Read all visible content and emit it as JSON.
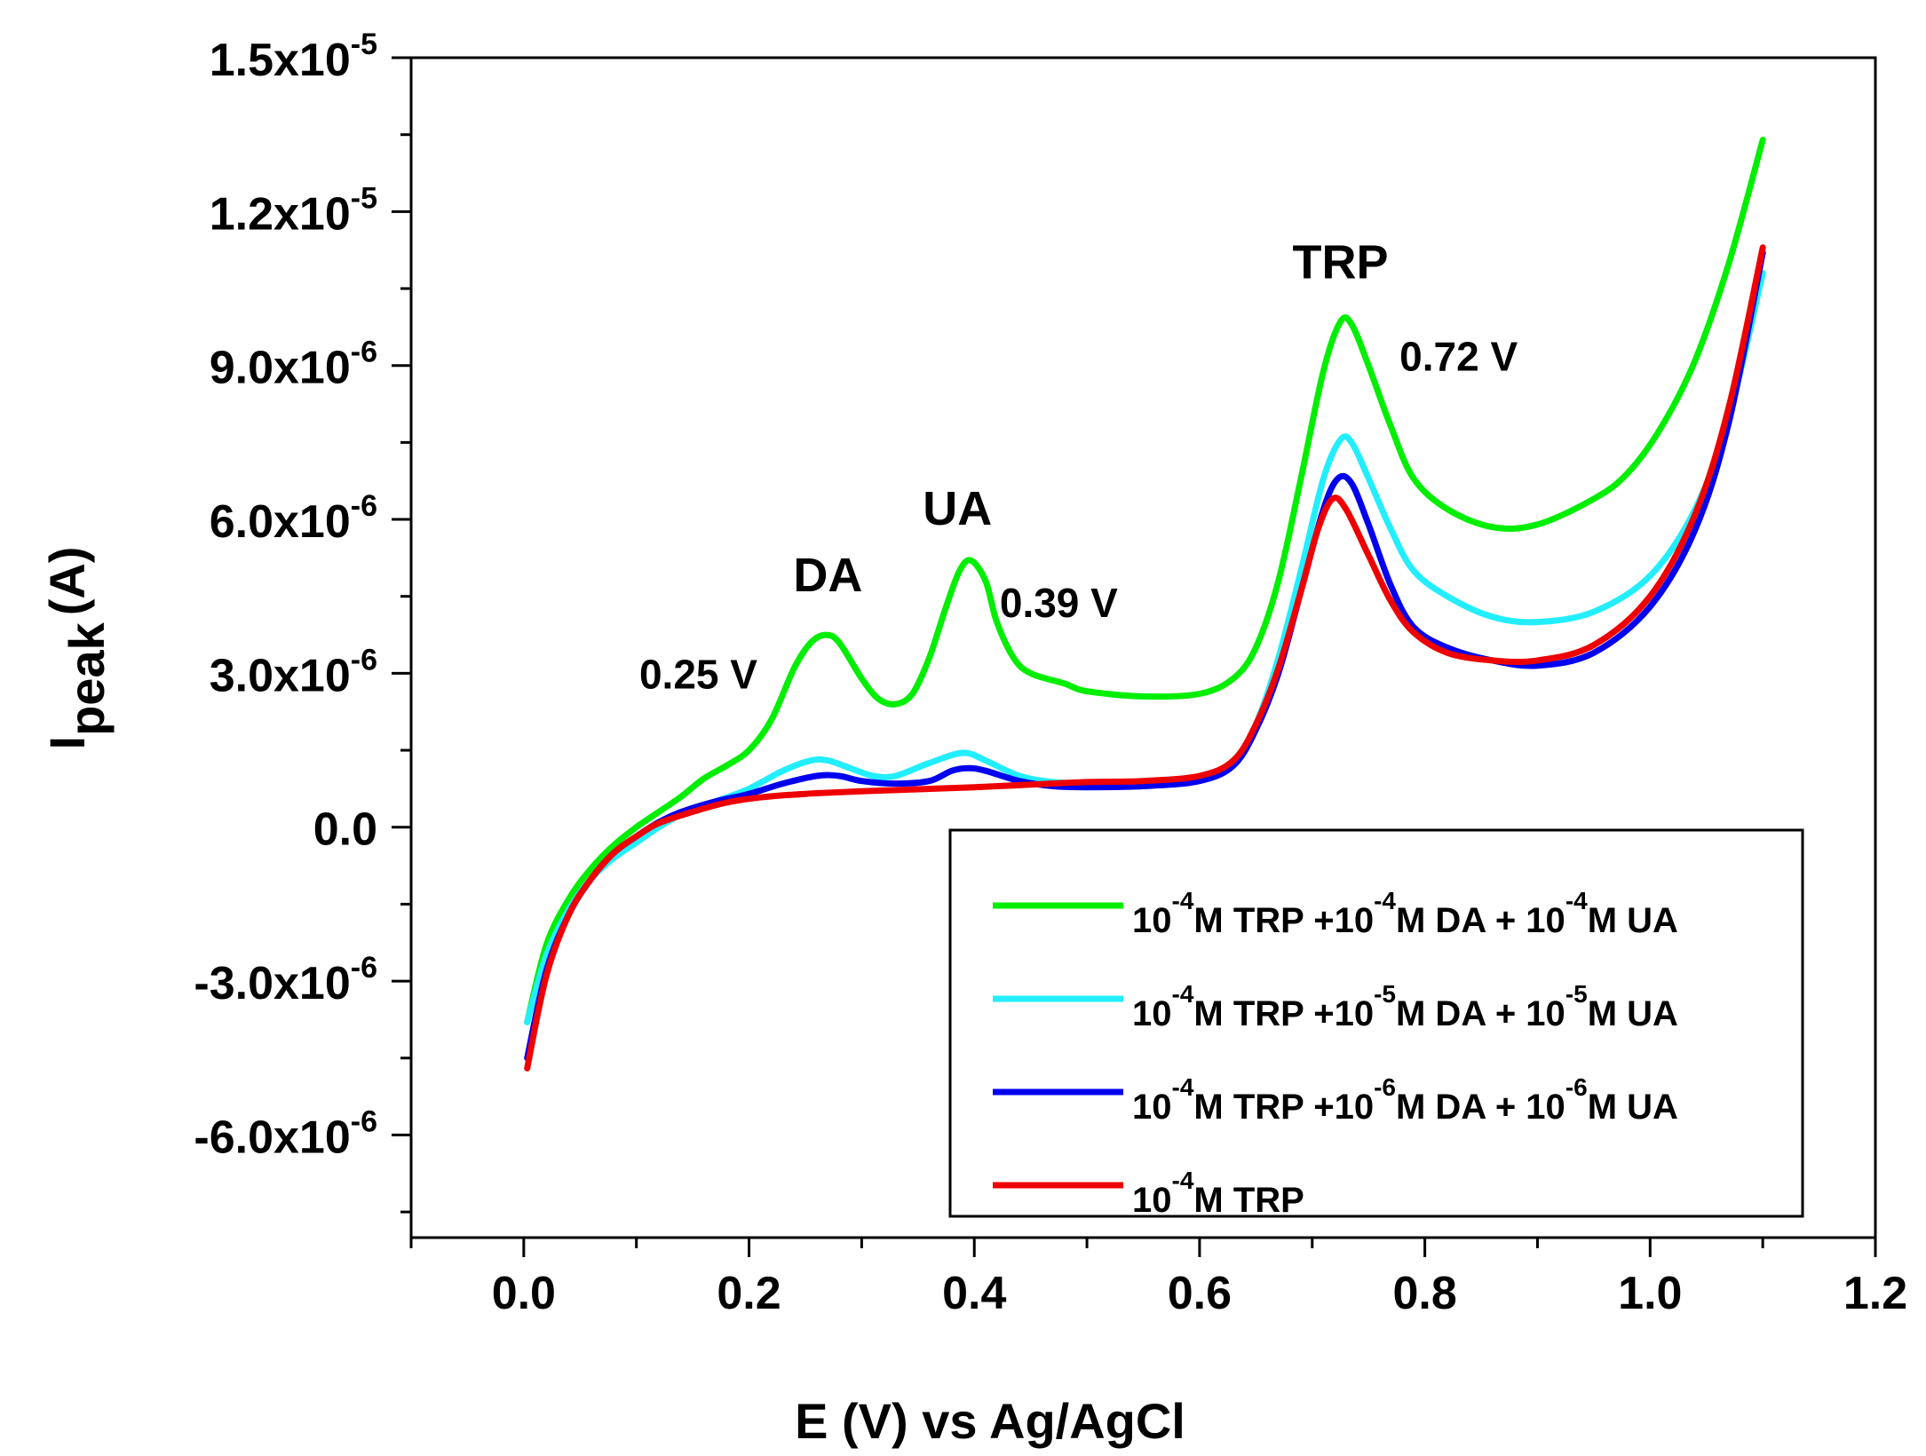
{
  "chart_data": {
    "type": "line",
    "xlabel": "E (V) vs Ag/AgCl",
    "ylabel": {
      "base": "I",
      "subscript": "peak",
      "unit": "(A)"
    },
    "xlim": [
      -0.1,
      1.2
    ],
    "ylim": [
      -8e-06,
      1.5e-05
    ],
    "x_ticks": [
      0.0,
      0.2,
      0.4,
      0.6,
      0.8,
      1.0,
      1.2
    ],
    "x_tick_labels": [
      "0.0",
      "0.2",
      "0.4",
      "0.6",
      "0.8",
      "1.0",
      "1.2"
    ],
    "y_ticks": [
      {
        "value": 1.5e-05,
        "mant": "1.5x10",
        "exp": "-5"
      },
      {
        "value": 1.2e-05,
        "mant": "1.2x10",
        "exp": "-5"
      },
      {
        "value": 9e-06,
        "mant": "9.0x10",
        "exp": "-6"
      },
      {
        "value": 6e-06,
        "mant": "6.0x10",
        "exp": "-6"
      },
      {
        "value": 3e-06,
        "mant": "3.0x10",
        "exp": "-6"
      },
      {
        "value": 0.0,
        "mant": "0.0",
        "exp": ""
      },
      {
        "value": -3e-06,
        "mant": "-3.0x10",
        "exp": "-6"
      },
      {
        "value": -6e-06,
        "mant": "-6.0x10",
        "exp": "-6"
      }
    ],
    "annotations": [
      {
        "text": "DA",
        "x": 0.27,
        "y": 4.6e-06,
        "size": "big"
      },
      {
        "text": "0.25 V",
        "x": 0.155,
        "y": 2.7e-06,
        "size": "small"
      },
      {
        "text": "UA",
        "x": 0.385,
        "y": 5.9e-06,
        "size": "big"
      },
      {
        "text": "0.39 V",
        "x": 0.475,
        "y": 4.1e-06,
        "size": "small"
      },
      {
        "text": "TRP",
        "x": 0.725,
        "y": 1.07e-05,
        "size": "big"
      },
      {
        "text": "0.72 V",
        "x": 0.83,
        "y": 8.9e-06,
        "size": "small"
      }
    ],
    "legend": {
      "placement": "bottom-right"
    },
    "series": [
      {
        "name": [
          {
            "t": "10"
          },
          {
            "t": "-4",
            "sup": true
          },
          {
            "t": "M TRP +10"
          },
          {
            "t": "-4",
            "sup": true
          },
          {
            "t": "M DA + 10"
          },
          {
            "t": "-4",
            "sup": true
          },
          {
            "t": "M UA"
          }
        ],
        "color": "#00ee00",
        "points": [
          [
            0.003,
            -3.8e-06
          ],
          [
            0.02,
            -2.3e-06
          ],
          [
            0.04,
            -1.4e-06
          ],
          [
            0.06,
            -8e-07
          ],
          [
            0.08,
            -3.5e-07
          ],
          [
            0.1,
            0.0
          ],
          [
            0.12,
            3e-07
          ],
          [
            0.14,
            6e-07
          ],
          [
            0.16,
            9.5e-07
          ],
          [
            0.18,
            1.2e-06
          ],
          [
            0.2,
            1.5e-06
          ],
          [
            0.22,
            2.1e-06
          ],
          [
            0.24,
            3.1e-06
          ],
          [
            0.255,
            3.6e-06
          ],
          [
            0.268,
            3.75e-06
          ],
          [
            0.28,
            3.6e-06
          ],
          [
            0.3,
            2.9e-06
          ],
          [
            0.315,
            2.5e-06
          ],
          [
            0.33,
            2.4e-06
          ],
          [
            0.345,
            2.6e-06
          ],
          [
            0.36,
            3.3e-06
          ],
          [
            0.375,
            4.3e-06
          ],
          [
            0.387,
            5e-06
          ],
          [
            0.397,
            5.2e-06
          ],
          [
            0.41,
            4.8e-06
          ],
          [
            0.42,
            4e-06
          ],
          [
            0.435,
            3.3e-06
          ],
          [
            0.45,
            3e-06
          ],
          [
            0.48,
            2.8e-06
          ],
          [
            0.5,
            2.65e-06
          ],
          [
            0.55,
            2.55e-06
          ],
          [
            0.6,
            2.6e-06
          ],
          [
            0.63,
            2.9e-06
          ],
          [
            0.65,
            3.5e-06
          ],
          [
            0.67,
            4.8e-06
          ],
          [
            0.69,
            6.8e-06
          ],
          [
            0.71,
            8.9e-06
          ],
          [
            0.725,
            9.85e-06
          ],
          [
            0.735,
            9.8e-06
          ],
          [
            0.75,
            9e-06
          ],
          [
            0.77,
            7.8e-06
          ],
          [
            0.79,
            6.8e-06
          ],
          [
            0.82,
            6.2e-06
          ],
          [
            0.86,
            5.85e-06
          ],
          [
            0.9,
            5.9e-06
          ],
          [
            0.95,
            6.4e-06
          ],
          [
            0.98,
            6.9e-06
          ],
          [
            1.01,
            7.8e-06
          ],
          [
            1.04,
            9.1e-06
          ],
          [
            1.07,
            1.1e-05
          ],
          [
            1.1,
            1.34e-05
          ]
        ]
      },
      {
        "name": [
          {
            "t": "10"
          },
          {
            "t": "-4",
            "sup": true
          },
          {
            "t": "M TRP +10"
          },
          {
            "t": "-5",
            "sup": true
          },
          {
            "t": "M DA + 10"
          },
          {
            "t": "-5",
            "sup": true
          },
          {
            "t": "M UA"
          }
        ],
        "color": "#22eeff",
        "points": [
          [
            0.003,
            -3.8e-06
          ],
          [
            0.02,
            -2.5e-06
          ],
          [
            0.04,
            -1.6e-06
          ],
          [
            0.06,
            -1e-06
          ],
          [
            0.08,
            -6e-07
          ],
          [
            0.1,
            -3e-07
          ],
          [
            0.12,
            0.0
          ],
          [
            0.14,
            2.5e-07
          ],
          [
            0.17,
            5e-07
          ],
          [
            0.2,
            7.5e-07
          ],
          [
            0.23,
            1.1e-06
          ],
          [
            0.255,
            1.3e-06
          ],
          [
            0.27,
            1.3e-06
          ],
          [
            0.29,
            1.15e-06
          ],
          [
            0.31,
            1e-06
          ],
          [
            0.33,
            1e-06
          ],
          [
            0.36,
            1.25e-06
          ],
          [
            0.39,
            1.45e-06
          ],
          [
            0.41,
            1.3e-06
          ],
          [
            0.44,
            1e-06
          ],
          [
            0.47,
            8.8e-07
          ],
          [
            0.5,
            8.5e-07
          ],
          [
            0.55,
            8.5e-07
          ],
          [
            0.6,
            9.5e-07
          ],
          [
            0.63,
            1.3e-06
          ],
          [
            0.65,
            2e-06
          ],
          [
            0.67,
            3.3e-06
          ],
          [
            0.69,
            5e-06
          ],
          [
            0.71,
            6.8e-06
          ],
          [
            0.725,
            7.55e-06
          ],
          [
            0.735,
            7.5e-06
          ],
          [
            0.75,
            6.8e-06
          ],
          [
            0.77,
            5.8e-06
          ],
          [
            0.79,
            5e-06
          ],
          [
            0.82,
            4.5e-06
          ],
          [
            0.86,
            4.1e-06
          ],
          [
            0.9,
            4e-06
          ],
          [
            0.95,
            4.2e-06
          ],
          [
            1.0,
            4.9e-06
          ],
          [
            1.04,
            6.2e-06
          ],
          [
            1.07,
            8e-06
          ],
          [
            1.1,
            1.08e-05
          ]
        ]
      },
      {
        "name": [
          {
            "t": "10"
          },
          {
            "t": "-4",
            "sup": true
          },
          {
            "t": "M TRP +10"
          },
          {
            "t": "-6",
            "sup": true
          },
          {
            "t": "M DA + 10"
          },
          {
            "t": "-6",
            "sup": true
          },
          {
            "t": "M UA"
          }
        ],
        "color": "#0000ee",
        "points": [
          [
            0.003,
            -4.5e-06
          ],
          [
            0.02,
            -2.8e-06
          ],
          [
            0.04,
            -1.7e-06
          ],
          [
            0.06,
            -1e-06
          ],
          [
            0.08,
            -5e-07
          ],
          [
            0.1,
            -1.8e-07
          ],
          [
            0.12,
            1e-07
          ],
          [
            0.14,
            3e-07
          ],
          [
            0.17,
            5e-07
          ],
          [
            0.2,
            6.5e-07
          ],
          [
            0.23,
            8.5e-07
          ],
          [
            0.26,
            1e-06
          ],
          [
            0.28,
            1e-06
          ],
          [
            0.3,
            9e-07
          ],
          [
            0.33,
            8.5e-07
          ],
          [
            0.36,
            9e-07
          ],
          [
            0.38,
            1.1e-06
          ],
          [
            0.395,
            1.15e-06
          ],
          [
            0.41,
            1.1e-06
          ],
          [
            0.44,
            9e-07
          ],
          [
            0.47,
            8e-07
          ],
          [
            0.5,
            7.8e-07
          ],
          [
            0.55,
            8e-07
          ],
          [
            0.6,
            9e-07
          ],
          [
            0.63,
            1.2e-06
          ],
          [
            0.65,
            1.9e-06
          ],
          [
            0.67,
            3e-06
          ],
          [
            0.69,
            4.6e-06
          ],
          [
            0.71,
            6.2e-06
          ],
          [
            0.723,
            6.8e-06
          ],
          [
            0.735,
            6.7e-06
          ],
          [
            0.75,
            5.9e-06
          ],
          [
            0.77,
            4.7e-06
          ],
          [
            0.79,
            3.9e-06
          ],
          [
            0.82,
            3.5e-06
          ],
          [
            0.86,
            3.25e-06
          ],
          [
            0.9,
            3.15e-06
          ],
          [
            0.95,
            3.4e-06
          ],
          [
            1.0,
            4.3e-06
          ],
          [
            1.04,
            5.8e-06
          ],
          [
            1.07,
            7.9e-06
          ],
          [
            1.1,
            1.12e-05
          ]
        ]
      },
      {
        "name": [
          {
            "t": "10"
          },
          {
            "t": "-4",
            "sup": true
          },
          {
            "t": "M TRP"
          }
        ],
        "color": "#ee0000",
        "points": [
          [
            0.003,
            -4.7e-06
          ],
          [
            0.02,
            -2.9e-06
          ],
          [
            0.04,
            -1.7e-06
          ],
          [
            0.06,
            -1e-06
          ],
          [
            0.08,
            -5e-07
          ],
          [
            0.1,
            -1.8e-07
          ],
          [
            0.12,
            8e-08
          ],
          [
            0.15,
            3e-07
          ],
          [
            0.18,
            4.8e-07
          ],
          [
            0.21,
            5.8e-07
          ],
          [
            0.25,
            6.5e-07
          ],
          [
            0.3,
            7e-07
          ],
          [
            0.35,
            7.4e-07
          ],
          [
            0.4,
            7.8e-07
          ],
          [
            0.45,
            8.3e-07
          ],
          [
            0.5,
            8.8e-07
          ],
          [
            0.55,
            9e-07
          ],
          [
            0.6,
            1e-06
          ],
          [
            0.63,
            1.3e-06
          ],
          [
            0.65,
            2e-06
          ],
          [
            0.67,
            3.1e-06
          ],
          [
            0.69,
            4.6e-06
          ],
          [
            0.705,
            5.8e-06
          ],
          [
            0.718,
            6.4e-06
          ],
          [
            0.73,
            6.2e-06
          ],
          [
            0.75,
            5.3e-06
          ],
          [
            0.77,
            4.4e-06
          ],
          [
            0.79,
            3.8e-06
          ],
          [
            0.82,
            3.4e-06
          ],
          [
            0.86,
            3.25e-06
          ],
          [
            0.9,
            3.25e-06
          ],
          [
            0.95,
            3.55e-06
          ],
          [
            1.0,
            4.5e-06
          ],
          [
            1.04,
            6.1e-06
          ],
          [
            1.07,
            8.2e-06
          ],
          [
            1.1,
            1.13e-05
          ]
        ]
      }
    ]
  }
}
